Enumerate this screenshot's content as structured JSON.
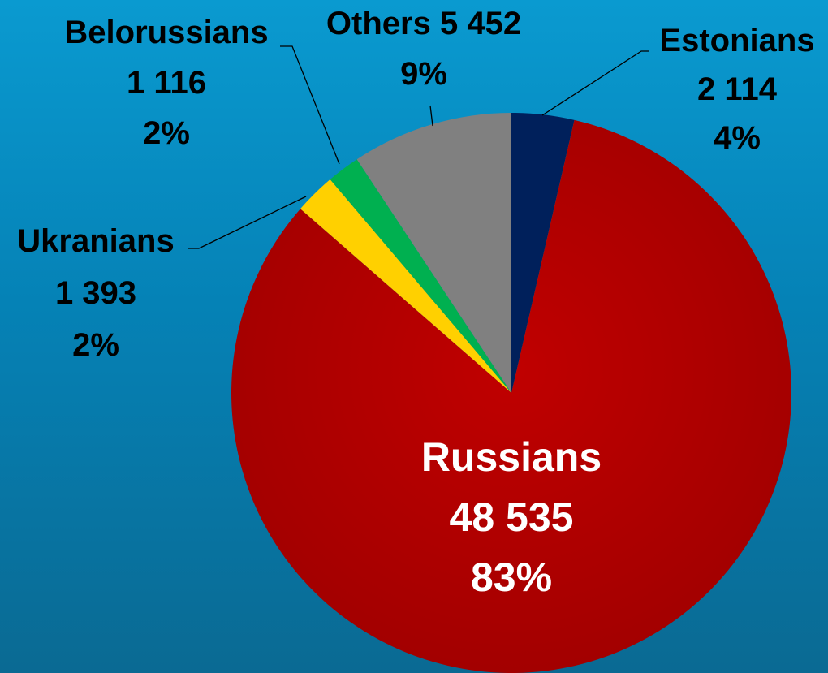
{
  "chart_data": {
    "type": "pie",
    "title": "",
    "colors": {
      "Estonians": "#00205b",
      "Russians": "#b00000",
      "Ukranians": "#ffd000",
      "Belorussians": "#00b050",
      "Others": "#808080"
    },
    "slices": [
      {
        "name": "Estonians",
        "value": 2114,
        "percent": "4%",
        "label_lines": [
          "Estonians",
          "2 114",
          "4%"
        ]
      },
      {
        "name": "Russians",
        "value": 48535,
        "percent": "83%",
        "label_lines": [
          "Russians",
          "48 535",
          "83%"
        ]
      },
      {
        "name": "Ukranians",
        "value": 1393,
        "percent": "2%",
        "label_lines": [
          "Ukranians",
          "1 393",
          "2%"
        ]
      },
      {
        "name": "Belorussians",
        "value": 1116,
        "percent": "2%",
        "label_lines": [
          "Belorussians",
          "1 116",
          "2%"
        ]
      },
      {
        "name": "Others",
        "value": 5452,
        "percent": "9%",
        "label_lines": [
          "Others 5 452",
          "9%"
        ]
      }
    ]
  }
}
